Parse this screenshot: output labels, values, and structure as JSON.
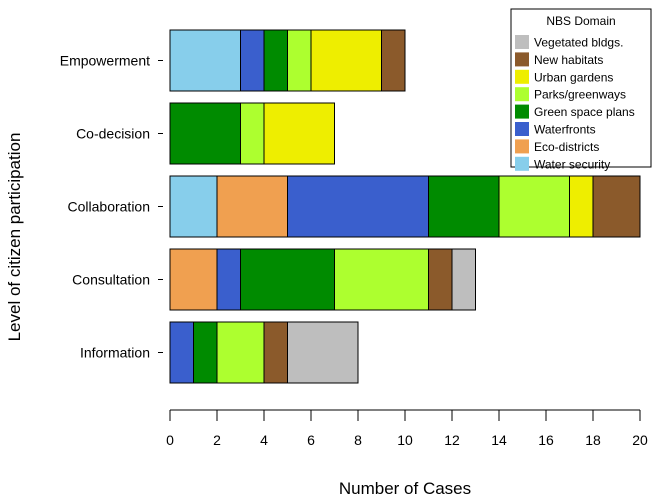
{
  "chart_data": {
    "type": "bar",
    "orientation": "horizontal",
    "stacked": true,
    "title": "",
    "xlabel": "Number of Cases",
    "ylabel": "Level of citizen participation",
    "xlim": [
      0,
      20
    ],
    "x_ticks": [
      0,
      2,
      4,
      6,
      8,
      10,
      12,
      14,
      16,
      18,
      20
    ],
    "grid": false,
    "legend_title": "NBS Domain",
    "legend_position": "top-right",
    "categories": [
      "Empowerment",
      "Co-decision",
      "Collaboration",
      "Consultation",
      "Information"
    ],
    "stack_order": [
      "Water security",
      "Eco-districts",
      "Waterfronts",
      "Green space plans",
      "Parks/greenways",
      "Urban gardens",
      "New habitats",
      "Vegetated bldgs."
    ],
    "legend_order": [
      "Vegetated bldgs.",
      "New habitats",
      "Urban gardens",
      "Parks/greenways",
      "Green space plans",
      "Waterfronts",
      "Eco-districts",
      "Water security"
    ],
    "series": [
      {
        "name": "Water security",
        "color": "#87ceeb",
        "values": [
          3,
          0,
          2,
          0,
          0
        ]
      },
      {
        "name": "Eco-districts",
        "color": "#f0a050",
        "values": [
          0,
          0,
          3,
          2,
          0
        ]
      },
      {
        "name": "Waterfronts",
        "color": "#3a5fcd",
        "values": [
          1,
          0,
          6,
          1,
          1
        ]
      },
      {
        "name": "Green space plans",
        "color": "#008b00",
        "values": [
          1,
          3,
          3,
          4,
          1
        ]
      },
      {
        "name": "Parks/greenways",
        "color": "#adff2f",
        "values": [
          1,
          1,
          3,
          4,
          2
        ]
      },
      {
        "name": "Urban gardens",
        "color": "#eeee00",
        "values": [
          3,
          3,
          1,
          0,
          0
        ]
      },
      {
        "name": "New habitats",
        "color": "#8b5a2b",
        "values": [
          1,
          0,
          2,
          1,
          1
        ]
      },
      {
        "name": "Vegetated bldgs.",
        "color": "#bebebe",
        "values": [
          0,
          0,
          0,
          1,
          3
        ]
      }
    ]
  }
}
